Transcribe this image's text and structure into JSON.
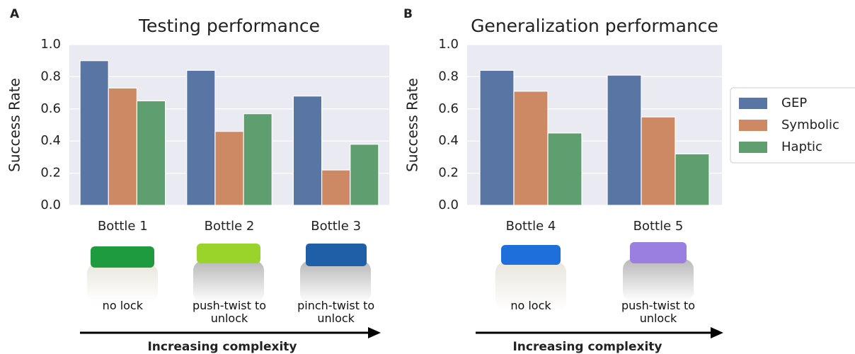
{
  "chart_data": [
    {
      "type": "bar",
      "panel_label": "A",
      "title": "Testing performance",
      "ylabel": "Success Rate",
      "categories": [
        "Bottle 1",
        "Bottle 2",
        "Bottle 3"
      ],
      "captions": [
        "no lock",
        "push-twist to unlock",
        "pinch-twist to unlock"
      ],
      "footer": "Increasing complexity",
      "series": [
        {
          "color": "#5875a4",
          "values": [
            0.9,
            0.84,
            0.68
          ]
        },
        {
          "color": "#cc8963",
          "values": [
            0.73,
            0.46,
            0.22
          ]
        },
        {
          "color": "#5f9e6e",
          "values": [
            0.65,
            0.57,
            0.38
          ]
        }
      ],
      "ylim": [
        0,
        1
      ],
      "yticks": [
        {
          "value": 0,
          "label": "0.0"
        },
        0.2,
        0.4,
        0.6,
        0.8,
        {
          "value": 1,
          "label": "1.0"
        }
      ],
      "grid": true
    },
    {
      "type": "bar",
      "panel_label": "B",
      "title": "Generalization performance",
      "ylabel": "Success Rate",
      "categories": [
        "Bottle 4",
        "Bottle 5"
      ],
      "captions": [
        "no lock",
        "push-twist to unlock"
      ],
      "footer": "Increasing complexity",
      "series": [
        {
          "name": "GEP",
          "color": "#5875a4",
          "values": [
            0.84,
            0.81
          ]
        },
        {
          "name": "Symbolic",
          "color": "#cc8963",
          "values": [
            0.71,
            0.55
          ]
        },
        {
          "name": "Haptic",
          "color": "#5f9e6e",
          "values": [
            0.45,
            0.32
          ]
        }
      ],
      "ylim": [
        0,
        1
      ],
      "yticks": [
        {
          "value": 0,
          "label": "0.0"
        },
        0.2,
        0.4,
        0.6,
        0.8,
        {
          "value": 1,
          "label": "1.0"
        }
      ],
      "grid": true
    }
  ]
}
